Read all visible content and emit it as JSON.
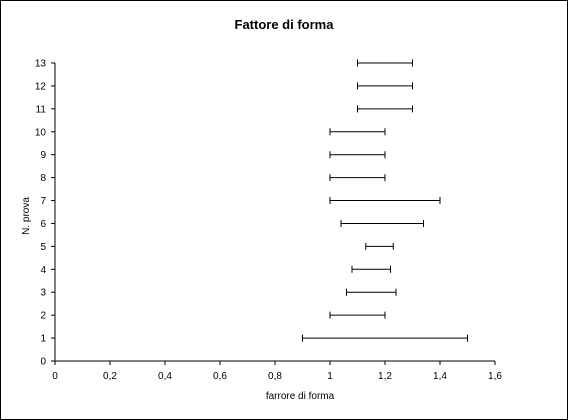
{
  "chart_data": {
    "type": "errorbar",
    "title": "Fattore di forma",
    "xlabel": "farrore di forma",
    "ylabel": "N. prova",
    "xlim": [
      0,
      1.6
    ],
    "ylim": [
      0,
      13
    ],
    "x_ticks": [
      "0",
      "0,2",
      "0,4",
      "0,6",
      "0,8",
      "1",
      "1,2",
      "1,4",
      "1,6"
    ],
    "y_ticks": [
      "0",
      "1",
      "2",
      "3",
      "4",
      "5",
      "6",
      "7",
      "8",
      "9",
      "10",
      "11",
      "12",
      "13"
    ],
    "grid": false,
    "legend": "none",
    "series": [
      {
        "intervals": [
          {
            "prova": 1,
            "min": 0.9,
            "max": 1.5
          },
          {
            "prova": 2,
            "min": 1.0,
            "max": 1.2
          },
          {
            "prova": 3,
            "min": 1.06,
            "max": 1.24
          },
          {
            "prova": 4,
            "min": 1.08,
            "max": 1.22
          },
          {
            "prova": 5,
            "min": 1.13,
            "max": 1.23
          },
          {
            "prova": 6,
            "min": 1.04,
            "max": 1.34
          },
          {
            "prova": 7,
            "min": 1.0,
            "max": 1.4
          },
          {
            "prova": 8,
            "min": 1.0,
            "max": 1.2
          },
          {
            "prova": 9,
            "min": 1.0,
            "max": 1.2
          },
          {
            "prova": 10,
            "min": 1.0,
            "max": 1.2
          },
          {
            "prova": 11,
            "min": 1.1,
            "max": 1.3
          },
          {
            "prova": 12,
            "min": 1.1,
            "max": 1.3
          },
          {
            "prova": 13,
            "min": 1.1,
            "max": 1.3
          }
        ]
      }
    ]
  }
}
